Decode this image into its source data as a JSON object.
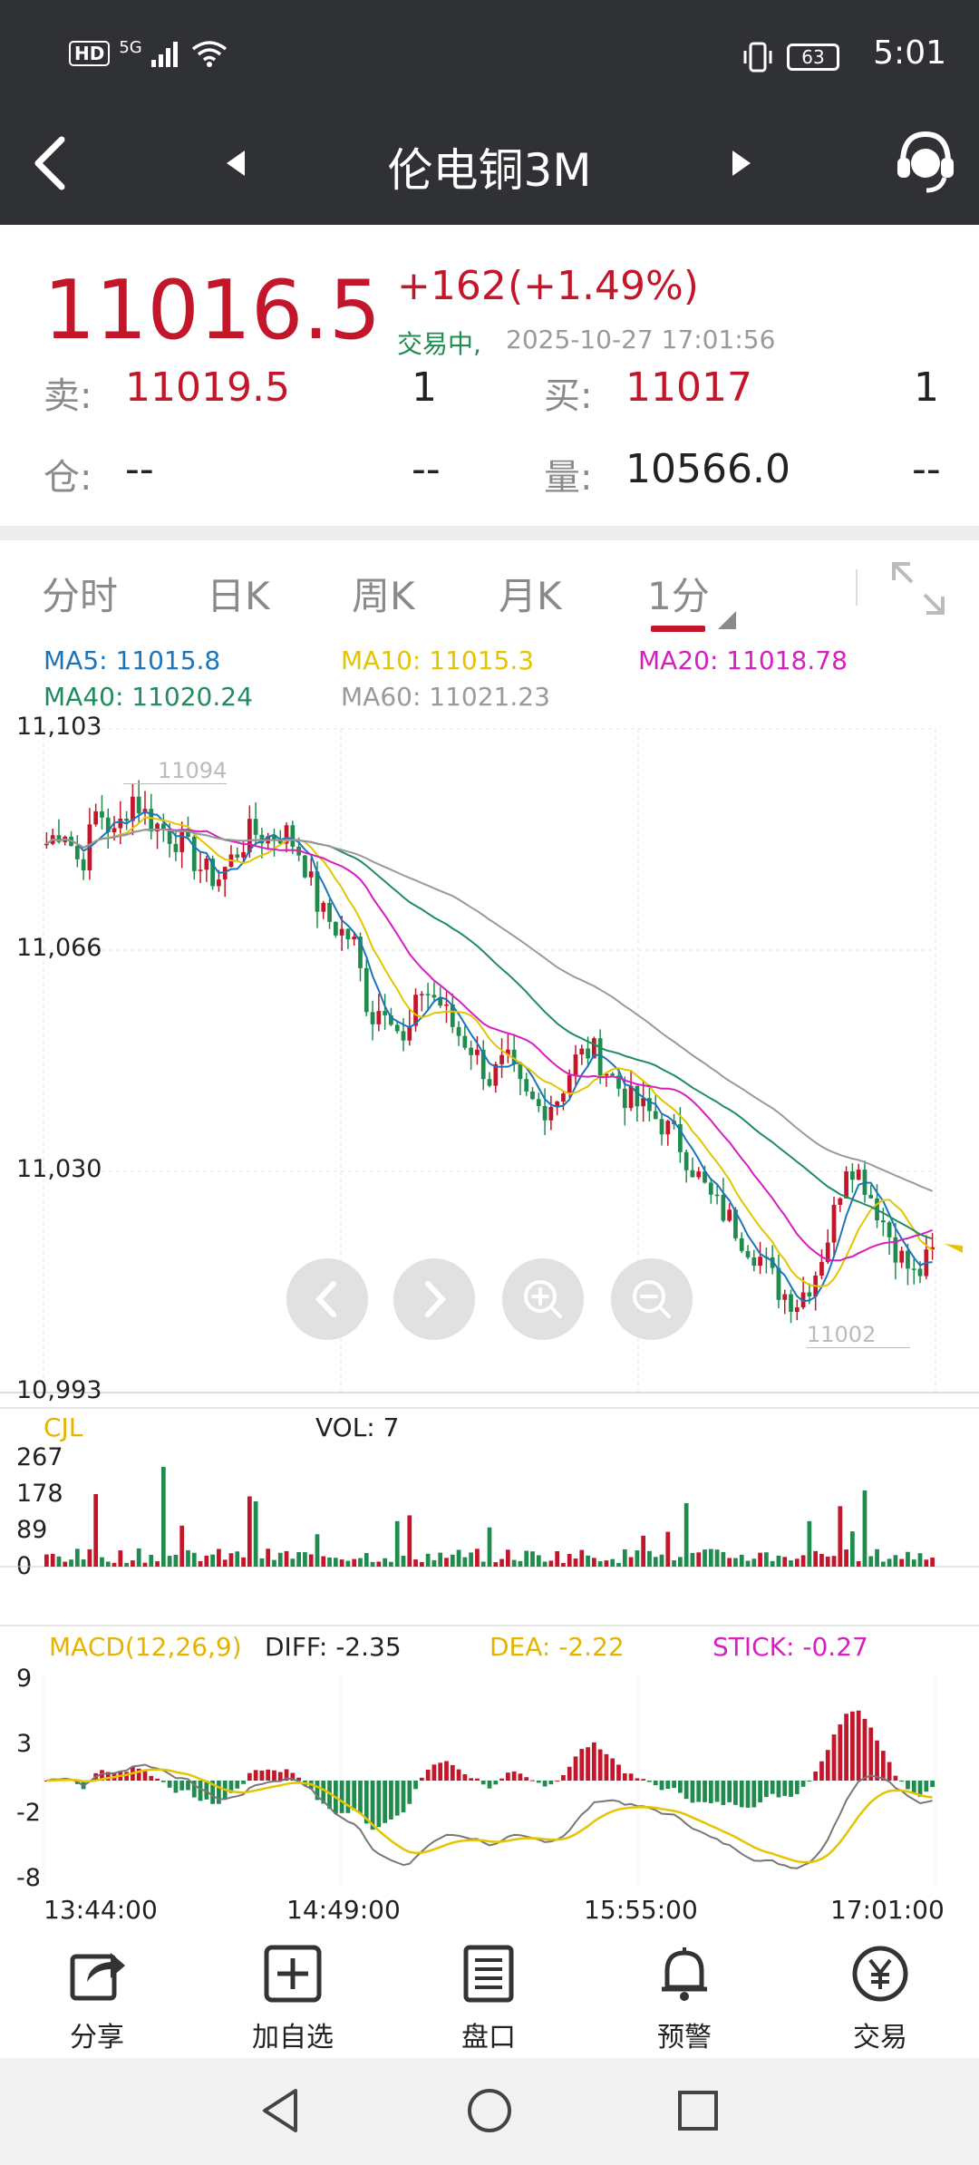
{
  "status_bar": {
    "network_hd": "HD",
    "network_gen": "5G",
    "battery": "63",
    "time": "5:01"
  },
  "header": {
    "title": "伦电铜3M"
  },
  "quote": {
    "last_price": "11016.5",
    "change": "+162",
    "change_pct": "(+1.49%)",
    "status": "交易中,",
    "datetime": "2025-10-27 17:01:56",
    "sell_label": "卖:",
    "sell_price": "11019.5",
    "sell_qty": "1",
    "buy_label": "买:",
    "buy_price": "11017",
    "buy_qty": "1",
    "position_label": "仓:",
    "position_value": "--",
    "position_change": "--",
    "volume_label": "量:",
    "volume_value": "10566.0",
    "volume_change": "--"
  },
  "tabs": [
    "分时",
    "日K",
    "周K",
    "月K",
    "1分"
  ],
  "active_tab": 4,
  "indicators": {
    "ma5": "MA5: 11015.8",
    "ma10": "MA10: 11015.3",
    "ma20": "MA20: 11018.78",
    "ma40": "MA40: 11020.24",
    "ma60": "MA60: 11021.23"
  },
  "colors": {
    "up": "#c4162a",
    "down": "#1f8c4e",
    "ma5": "#1a75bb",
    "ma10": "#e5c400",
    "ma20": "#d61fc0",
    "ma40": "#1f8c5e",
    "ma60": "#9a9a9a",
    "header_bg": "#2f3134"
  },
  "price_axis": {
    "labels": [
      "11,103",
      "11,066",
      "11,030",
      "10,993"
    ],
    "max": 11103,
    "min": 10993,
    "high_marker": "11094",
    "low_marker": "11002"
  },
  "volume_panel": {
    "label": "CJL",
    "vol": "VOL: 7",
    "axis_labels": [
      "267",
      "178",
      "89",
      "0"
    ]
  },
  "macd_panel": {
    "label": "MACD(12,26,9)",
    "diff": "DIFF: -2.35",
    "dea": "DEA: -2.22",
    "stick": "STICK: -0.27",
    "axis_labels": [
      "9",
      "3",
      "-2",
      "-8"
    ]
  },
  "time_axis": [
    "13:44:00",
    "14:49:00",
    "15:55:00",
    "17:01:00"
  ],
  "toolbar": [
    {
      "label": "分享",
      "icon": "share-icon"
    },
    {
      "label": "加自选",
      "icon": "add-watchlist-icon"
    },
    {
      "label": "盘口",
      "icon": "order-book-icon"
    },
    {
      "label": "预警",
      "icon": "bell-icon"
    },
    {
      "label": "交易",
      "icon": "yuan-icon"
    }
  ],
  "chart_data": {
    "type": "candlestick",
    "ylim": [
      10993,
      11103
    ],
    "x": [
      "13:44:00",
      "14:49:00",
      "15:55:00",
      "17:01:00"
    ],
    "close_path": [
      11084,
      11087,
      11080,
      11090,
      11085,
      11092,
      11088,
      11086,
      11084,
      11080,
      11078,
      11082,
      11086,
      11085,
      11086,
      11082,
      11073,
      11070,
      11068,
      11055,
      11058,
      11050,
      11060,
      11058,
      11053,
      11050,
      11045,
      11048,
      11042,
      11040,
      11042,
      11048,
      11050,
      11046,
      11042,
      11040,
      11038,
      11035,
      11030,
      11025,
      11022,
      11018,
      11015,
      11010,
      11008,
      11012,
      11020,
      11032,
      11028,
      11022,
      11016,
      11012,
      11016
    ]
  }
}
